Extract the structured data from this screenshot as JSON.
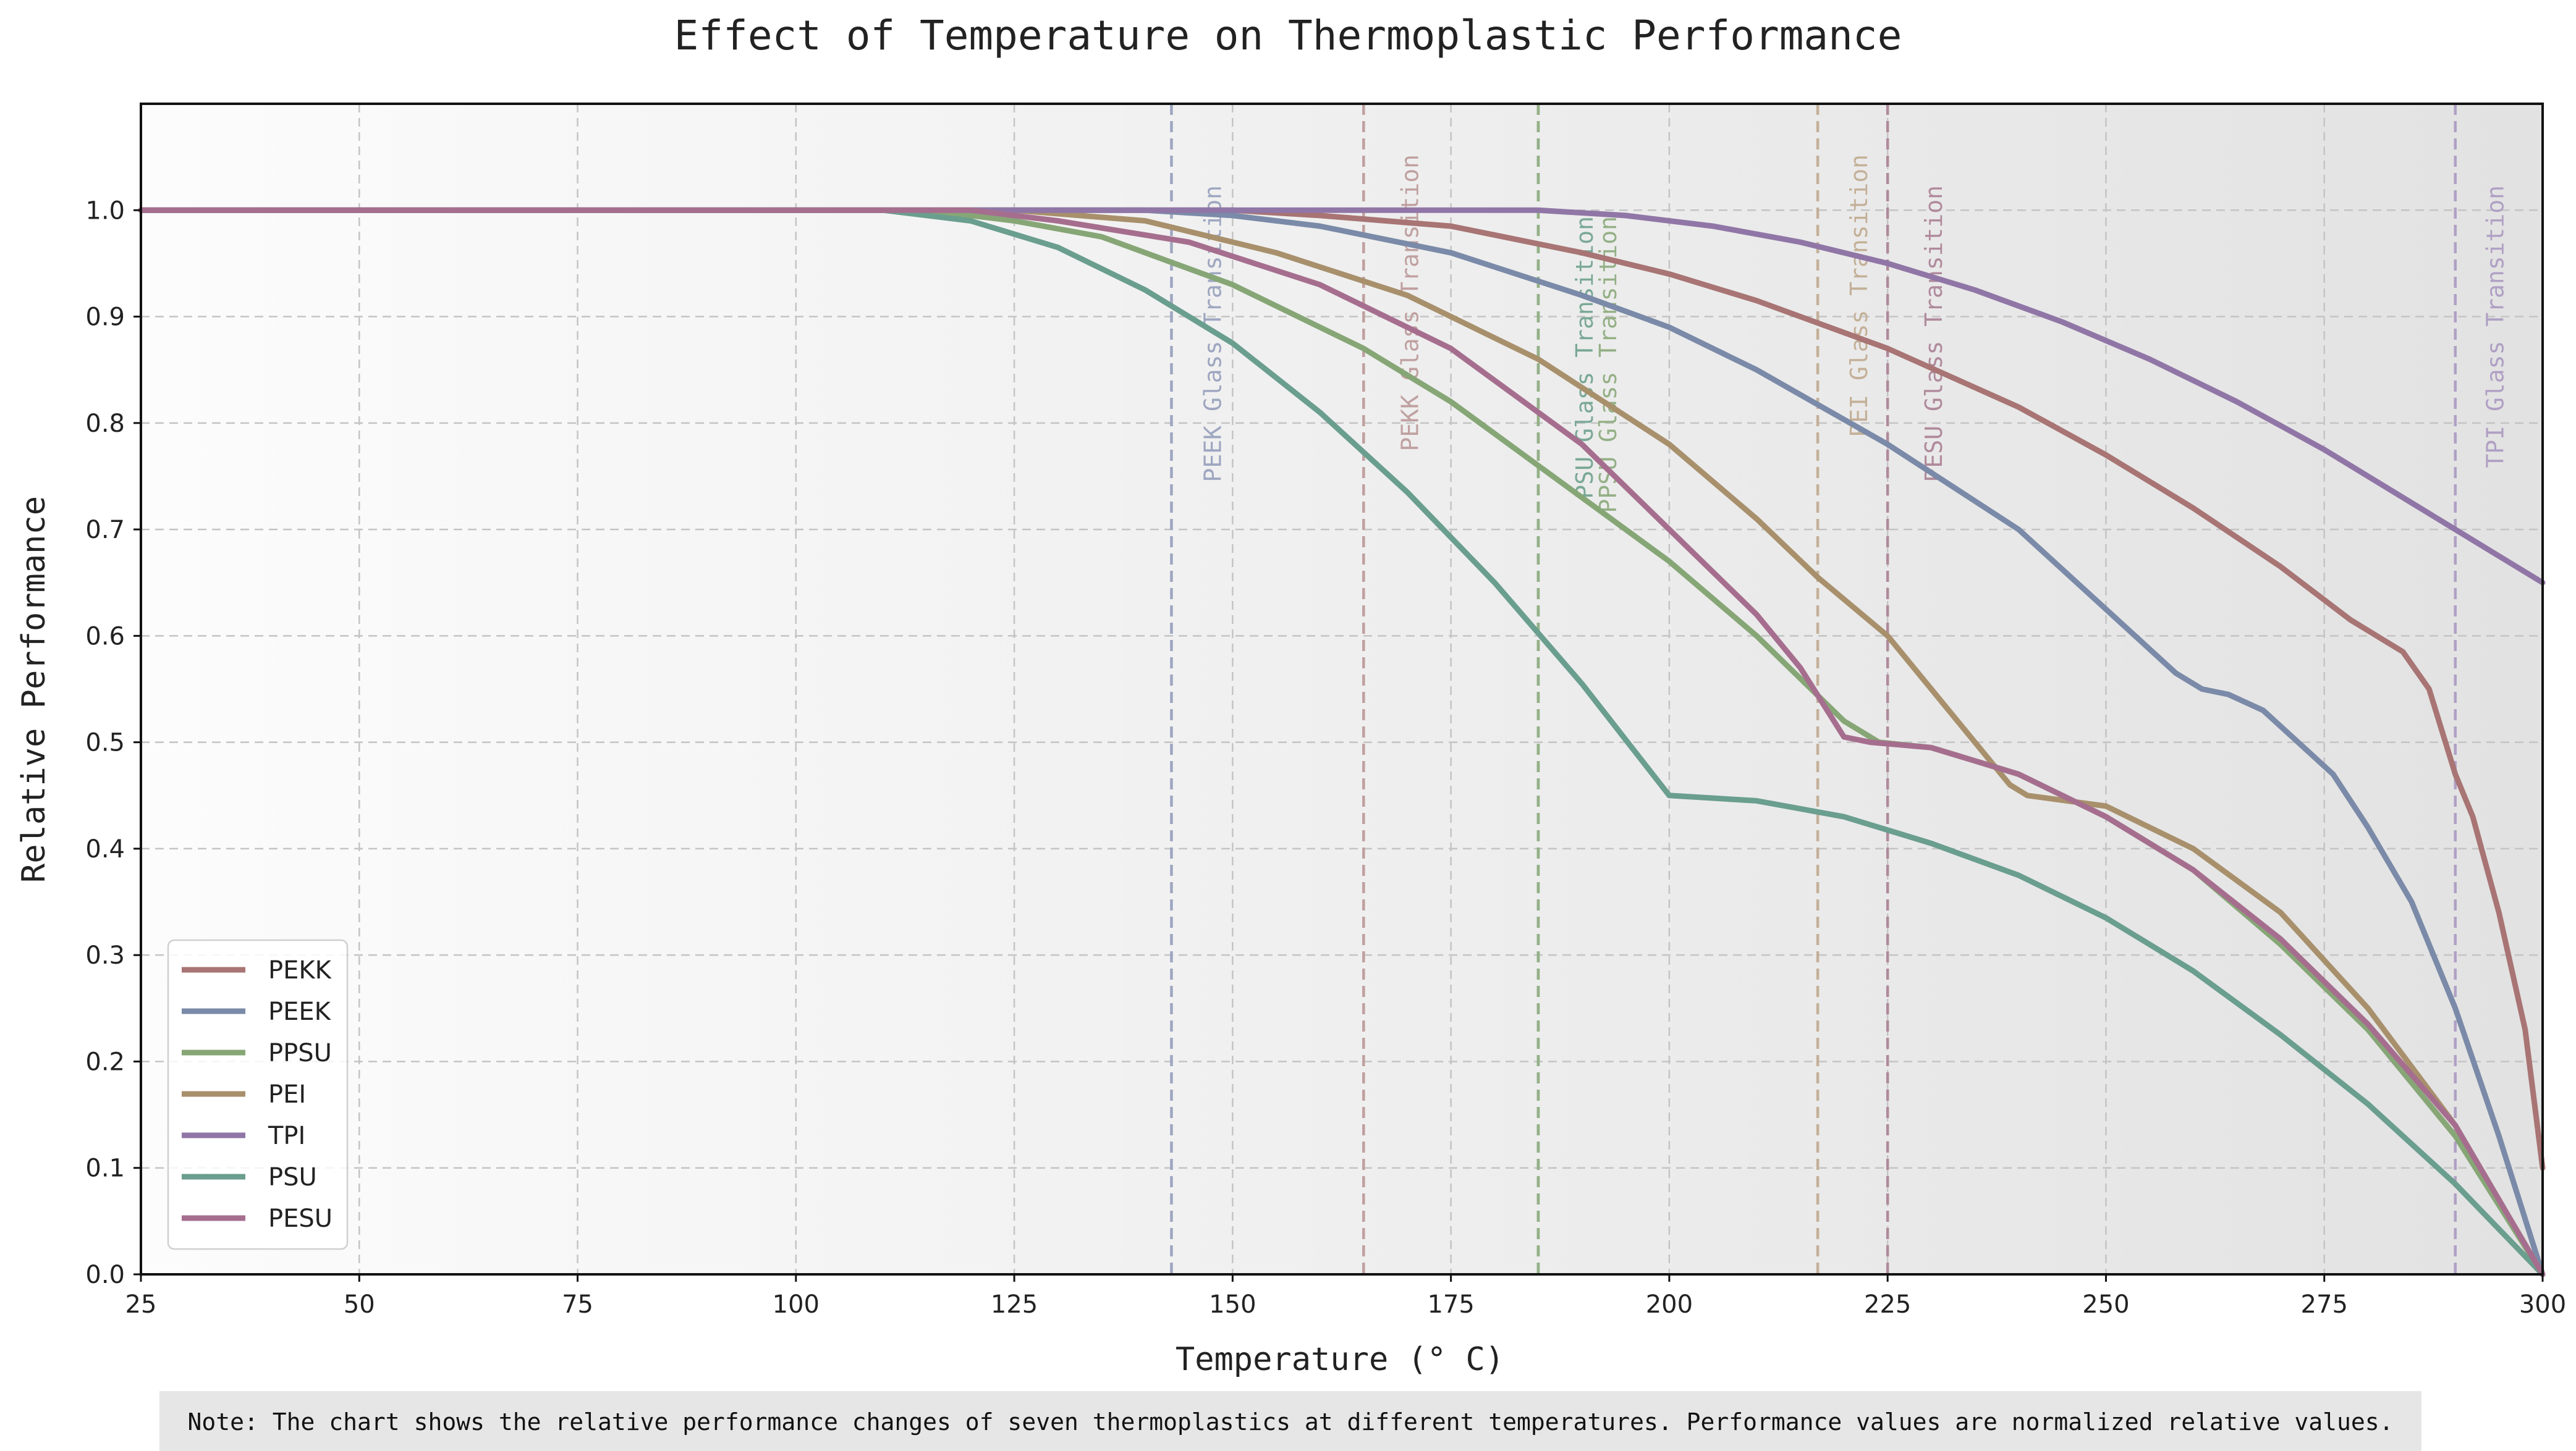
{
  "chart_data": {
    "type": "line",
    "title": "Effect of Temperature on Thermoplastic Performance",
    "xlabel": "Temperature (° C)",
    "ylabel": "Relative Performance",
    "xlim": [
      25,
      300
    ],
    "ylim": [
      0,
      1.1
    ],
    "xticks": [
      "25",
      "50",
      "75",
      "100",
      "125",
      "150",
      "175",
      "200",
      "225",
      "250",
      "275",
      "300"
    ],
    "xtick_values": [
      25,
      50,
      75,
      100,
      125,
      150,
      175,
      200,
      225,
      250,
      275,
      300
    ],
    "yticks": [
      "0.0",
      "0.1",
      "0.2",
      "0.3",
      "0.4",
      "0.5",
      "0.6",
      "0.7",
      "0.8",
      "0.9",
      "1.0"
    ],
    "ytick_values": [
      0,
      0.1,
      0.2,
      0.3,
      0.4,
      0.5,
      0.6,
      0.7,
      0.8,
      0.9,
      1.0
    ],
    "grid": true,
    "legend_position": "bottom-left",
    "background": "horizontal gradient, light gray to darker gray",
    "series": [
      {
        "name": "PEKK",
        "color": "#a87474",
        "points": [
          [
            25,
            1.0
          ],
          [
            150,
            1.0
          ],
          [
            160,
            0.995
          ],
          [
            175,
            0.985
          ],
          [
            190,
            0.96
          ],
          [
            200,
            0.94
          ],
          [
            210,
            0.915
          ],
          [
            225,
            0.87
          ],
          [
            240,
            0.815
          ],
          [
            250,
            0.77
          ],
          [
            260,
            0.72
          ],
          [
            270,
            0.665
          ],
          [
            278,
            0.615
          ],
          [
            284,
            0.585
          ],
          [
            287,
            0.55
          ],
          [
            290,
            0.47
          ],
          [
            292,
            0.43
          ],
          [
            295,
            0.34
          ],
          [
            298,
            0.23
          ],
          [
            300,
            0.1
          ]
        ]
      },
      {
        "name": "PEEK",
        "color": "#7a8aa8",
        "points": [
          [
            25,
            1.0
          ],
          [
            140,
            1.0
          ],
          [
            150,
            0.995
          ],
          [
            160,
            0.985
          ],
          [
            175,
            0.96
          ],
          [
            190,
            0.92
          ],
          [
            200,
            0.89
          ],
          [
            210,
            0.85
          ],
          [
            225,
            0.78
          ],
          [
            240,
            0.7
          ],
          [
            250,
            0.625
          ],
          [
            258,
            0.565
          ],
          [
            261,
            0.55
          ],
          [
            264,
            0.545
          ],
          [
            268,
            0.53
          ],
          [
            272,
            0.5
          ],
          [
            276,
            0.47
          ],
          [
            280,
            0.42
          ],
          [
            285,
            0.35
          ],
          [
            290,
            0.25
          ],
          [
            295,
            0.13
          ],
          [
            300,
            0.0
          ]
        ]
      },
      {
        "name": "PPSU",
        "color": "#86a676",
        "points": [
          [
            25,
            1.0
          ],
          [
            115,
            1.0
          ],
          [
            125,
            0.99
          ],
          [
            135,
            0.975
          ],
          [
            150,
            0.93
          ],
          [
            165,
            0.87
          ],
          [
            175,
            0.82
          ],
          [
            185,
            0.76
          ],
          [
            200,
            0.67
          ],
          [
            210,
            0.6
          ],
          [
            220,
            0.52
          ],
          [
            224,
            0.5
          ],
          [
            230,
            0.495
          ],
          [
            240,
            0.47
          ],
          [
            250,
            0.43
          ],
          [
            260,
            0.38
          ],
          [
            270,
            0.31
          ],
          [
            280,
            0.23
          ],
          [
            290,
            0.13
          ],
          [
            300,
            0.0
          ]
        ]
      },
      {
        "name": "PEI",
        "color": "#a8906c",
        "points": [
          [
            25,
            1.0
          ],
          [
            125,
            1.0
          ],
          [
            140,
            0.99
          ],
          [
            155,
            0.96
          ],
          [
            170,
            0.92
          ],
          [
            185,
            0.86
          ],
          [
            200,
            0.78
          ],
          [
            210,
            0.71
          ],
          [
            217,
            0.655
          ],
          [
            225,
            0.6
          ],
          [
            232,
            0.53
          ],
          [
            236,
            0.49
          ],
          [
            239,
            0.46
          ],
          [
            241,
            0.45
          ],
          [
            250,
            0.44
          ],
          [
            260,
            0.4
          ],
          [
            270,
            0.34
          ],
          [
            280,
            0.25
          ],
          [
            290,
            0.14
          ],
          [
            300,
            0.0
          ]
        ]
      },
      {
        "name": "TPI",
        "color": "#9076a6",
        "points": [
          [
            25,
            1.0
          ],
          [
            185,
            1.0
          ],
          [
            195,
            0.995
          ],
          [
            205,
            0.985
          ],
          [
            215,
            0.97
          ],
          [
            225,
            0.95
          ],
          [
            235,
            0.925
          ],
          [
            245,
            0.895
          ],
          [
            255,
            0.86
          ],
          [
            265,
            0.82
          ],
          [
            275,
            0.775
          ],
          [
            285,
            0.725
          ],
          [
            290,
            0.7
          ],
          [
            295,
            0.675
          ],
          [
            300,
            0.65
          ]
        ]
      },
      {
        "name": "PSU",
        "color": "#6a9e8e",
        "points": [
          [
            25,
            1.0
          ],
          [
            110,
            1.0
          ],
          [
            120,
            0.99
          ],
          [
            130,
            0.965
          ],
          [
            140,
            0.925
          ],
          [
            150,
            0.875
          ],
          [
            160,
            0.81
          ],
          [
            170,
            0.735
          ],
          [
            180,
            0.65
          ],
          [
            190,
            0.555
          ],
          [
            200,
            0.45
          ],
          [
            210,
            0.445
          ],
          [
            220,
            0.43
          ],
          [
            230,
            0.405
          ],
          [
            240,
            0.375
          ],
          [
            250,
            0.335
          ],
          [
            260,
            0.285
          ],
          [
            270,
            0.225
          ],
          [
            280,
            0.16
          ],
          [
            290,
            0.085
          ],
          [
            300,
            0.0
          ]
        ]
      },
      {
        "name": "PESU",
        "color": "#a66e8e",
        "points": [
          [
            25,
            1.0
          ],
          [
            120,
            1.0
          ],
          [
            130,
            0.99
          ],
          [
            145,
            0.97
          ],
          [
            160,
            0.93
          ],
          [
            175,
            0.87
          ],
          [
            190,
            0.78
          ],
          [
            200,
            0.7
          ],
          [
            210,
            0.62
          ],
          [
            215,
            0.57
          ],
          [
            220,
            0.505
          ],
          [
            223,
            0.5
          ],
          [
            230,
            0.495
          ],
          [
            240,
            0.47
          ],
          [
            250,
            0.43
          ],
          [
            260,
            0.38
          ],
          [
            270,
            0.315
          ],
          [
            280,
            0.235
          ],
          [
            290,
            0.14
          ],
          [
            300,
            0.0
          ]
        ]
      }
    ],
    "vertical_lines": [
      {
        "x": 143,
        "label": "PEEK Glass Transition",
        "color": "#9ea6c0"
      },
      {
        "x": 165,
        "label": "PEKK Glass Transition",
        "color": "#c0a0a0"
      },
      {
        "x": 185,
        "label": "PSU Glass Transition",
        "color": "#7aa896"
      },
      {
        "x": 185,
        "label": "PPSU Glass Transition",
        "color": "#94b086"
      },
      {
        "x": 217,
        "label": "PEI Glass Transition",
        "color": "#c4b098"
      },
      {
        "x": 225,
        "label": "PESU Glass Transition",
        "color": "#b08a9c"
      },
      {
        "x": 290,
        "label": "TPI Glass Transition",
        "color": "#b0a0c4"
      }
    ],
    "note": "Note: The chart shows the relative performance changes of seven thermoplastics at different temperatures. Performance values are normalized relative values."
  }
}
